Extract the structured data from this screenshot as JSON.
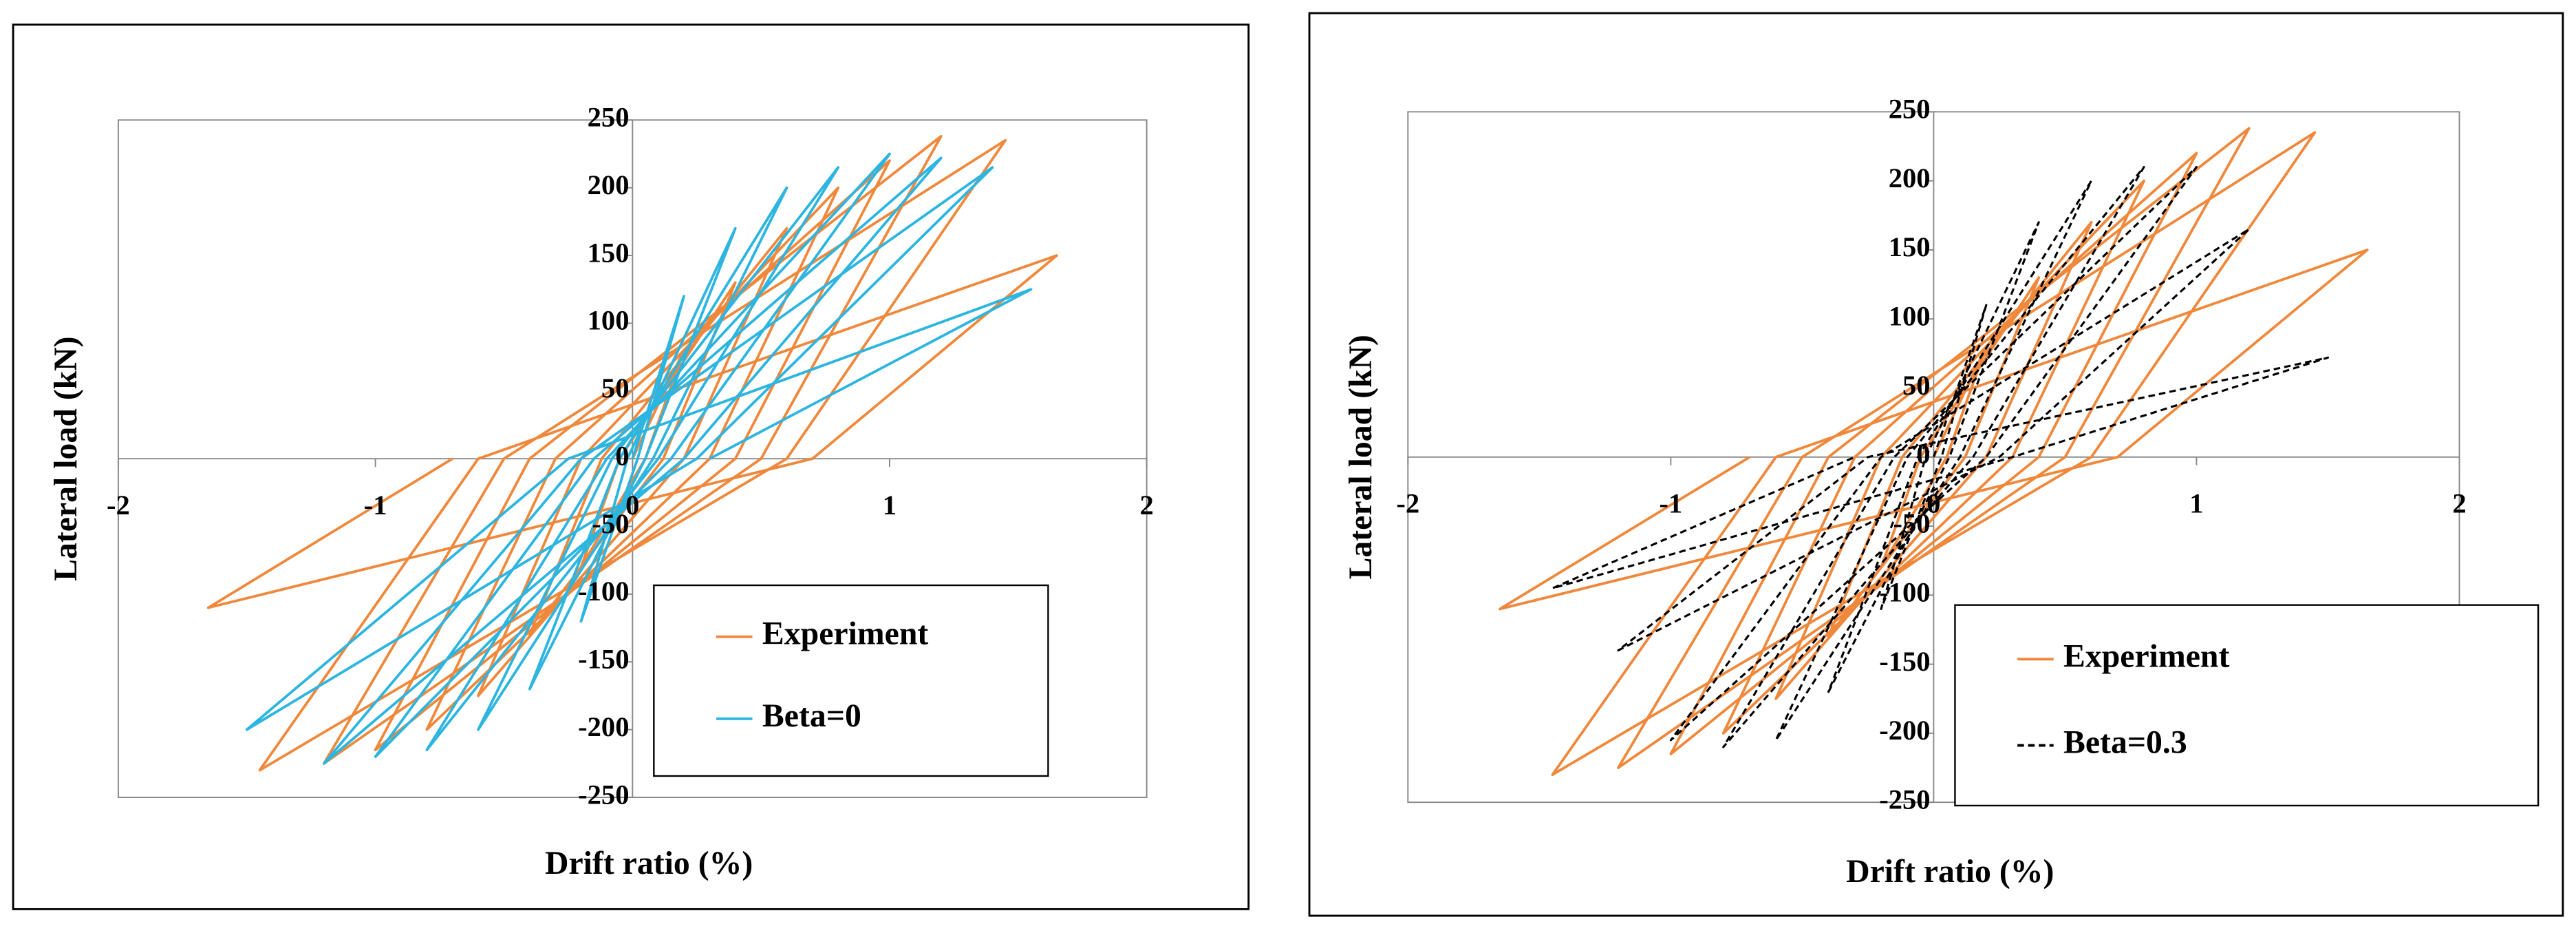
{
  "chart_data": [
    {
      "type": "line",
      "x_label": "Drift ratio (%)",
      "y_label": "Lateral load (kN)",
      "xlim": [
        -2,
        2
      ],
      "ylim": [
        -250,
        250
      ],
      "xticks": [
        -2,
        -1,
        0,
        1,
        2
      ],
      "yticks": [
        -250,
        -200,
        -150,
        -100,
        -50,
        0,
        50,
        100,
        150,
        200,
        250
      ],
      "legend": "lower right",
      "series": [
        {
          "name": "Experiment",
          "color": "#f0883c",
          "dashed": false,
          "x": [
            0,
            0.2,
            0.05,
            -0.2,
            -0.05,
            0.4,
            0.12,
            -0.4,
            -0.12,
            0.6,
            0.2,
            -0.6,
            -0.2,
            0.8,
            0.3,
            -0.8,
            -0.3,
            1.0,
            0.4,
            -1.0,
            -0.4,
            1.2,
            0.5,
            -1.2,
            -0.5,
            1.45,
            0.6,
            -1.45,
            -0.6,
            1.65,
            0.7,
            -1.65,
            -0.7
          ],
          "values": [
            0,
            80,
            0,
            -80,
            0,
            130,
            0,
            -130,
            0,
            170,
            0,
            -175,
            0,
            200,
            0,
            -200,
            0,
            220,
            0,
            -215,
            0,
            238,
            0,
            -225,
            0,
            235,
            0,
            -230,
            0,
            150,
            0,
            -110,
            0
          ]
        },
        {
          "name": "Beta=0",
          "color": "#2cb5e0",
          "dashed": false,
          "x": [
            0,
            0.2,
            0.02,
            -0.2,
            -0.02,
            0.4,
            0.05,
            -0.4,
            -0.05,
            0.6,
            0.08,
            -0.6,
            -0.08,
            0.8,
            0.1,
            -0.8,
            -0.1,
            1.0,
            0.15,
            -1.0,
            -0.15,
            1.2,
            0.2,
            -1.2,
            -0.2,
            1.4,
            0.25,
            -1.5,
            -0.25,
            1.55,
            0.3
          ],
          "values": [
            0,
            120,
            0,
            -120,
            0,
            170,
            0,
            -170,
            0,
            200,
            0,
            -200,
            0,
            215,
            0,
            -215,
            0,
            225,
            0,
            -220,
            0,
            222,
            0,
            -225,
            0,
            215,
            0,
            -200,
            0,
            125,
            0
          ]
        }
      ]
    },
    {
      "type": "line",
      "x_label": "Drift ratio (%)",
      "y_label": "Lateral load (kN)",
      "xlim": [
        -2,
        2
      ],
      "ylim": [
        -250,
        250
      ],
      "xticks": [
        -2,
        -1,
        0,
        1,
        2
      ],
      "yticks": [
        -250,
        -200,
        -150,
        -100,
        -50,
        0,
        50,
        100,
        150,
        200,
        250
      ],
      "legend": "lower right",
      "series": [
        {
          "name": "Experiment",
          "color": "#f0883c",
          "dashed": false,
          "x": [
            0,
            0.2,
            0.05,
            -0.2,
            -0.05,
            0.4,
            0.12,
            -0.4,
            -0.12,
            0.6,
            0.2,
            -0.6,
            -0.2,
            0.8,
            0.3,
            -0.8,
            -0.3,
            1.0,
            0.4,
            -1.0,
            -0.4,
            1.2,
            0.5,
            -1.2,
            -0.5,
            1.45,
            0.6,
            -1.45,
            -0.6,
            1.65,
            0.7,
            -1.65,
            -0.7
          ],
          "values": [
            0,
            80,
            0,
            -80,
            0,
            130,
            0,
            -130,
            0,
            170,
            0,
            -175,
            0,
            200,
            0,
            -200,
            0,
            220,
            0,
            -215,
            0,
            238,
            0,
            -225,
            0,
            235,
            0,
            -230,
            0,
            150,
            0,
            -110,
            0
          ]
        },
        {
          "name": "Beta=0.3",
          "color": "#000000",
          "dashed": true,
          "x": [
            0,
            0.2,
            0.03,
            -0.2,
            -0.03,
            0.4,
            0.06,
            -0.4,
            -0.06,
            0.6,
            0.1,
            -0.6,
            -0.1,
            0.8,
            0.15,
            -0.8,
            -0.15,
            1.0,
            0.2,
            -1.0,
            -0.2,
            1.2,
            0.25,
            -1.2,
            -0.25,
            1.5,
            0.3,
            -1.45,
            -0.3
          ],
          "values": [
            0,
            110,
            0,
            -110,
            0,
            170,
            0,
            -170,
            0,
            200,
            0,
            -205,
            0,
            210,
            0,
            -210,
            0,
            210,
            0,
            -205,
            0,
            165,
            0,
            -140,
            0,
            72,
            0,
            -95,
            0
          ]
        }
      ]
    }
  ]
}
